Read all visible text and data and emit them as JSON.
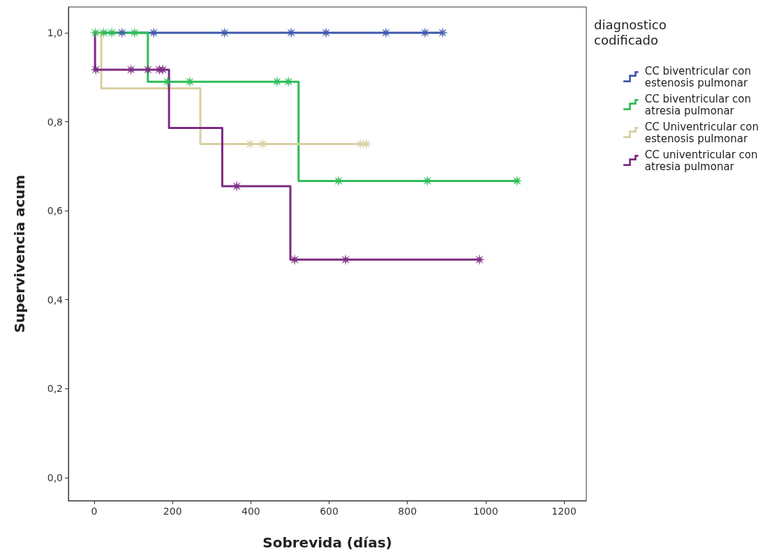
{
  "chart_data": {
    "type": "step",
    "xlabel": "Sobrevida (días)",
    "ylabel": "Supervivencia acum",
    "legend_title": "diagnostico codificado",
    "legend": "right",
    "grid": false,
    "marker": "none",
    "xlim": [
      -66,
      1257
    ],
    "xticks": [
      0,
      200,
      400,
      600,
      800,
      1000,
      1200
    ],
    "ylim": [
      -0.052,
      1.058
    ],
    "yticks": [
      {
        "value": 0,
        "label": "0,0"
      },
      {
        "value": 0.2,
        "label": "0,2"
      },
      {
        "value": 0.4,
        "label": "0,4"
      },
      {
        "value": 0.6,
        "label": "0,6"
      },
      {
        "value": 0.8,
        "label": "0,8"
      },
      {
        "value": 1,
        "label": "1,0"
      }
    ],
    "series": [
      {
        "name": "CC biventricular con estenosis pulmonar",
        "color": "#3e58ac",
        "x": [
          0,
          890
        ],
        "values": [
          1,
          1
        ]
      },
      {
        "name": "CC biventricular con atresia pulmonar",
        "color": "#2dbd57",
        "x": [
          0,
          137,
          522,
          1085
        ],
        "values": [
          1,
          0.89,
          0.667,
          0.667
        ]
      },
      {
        "name": "CC Univentricular con estenosis pulmonar",
        "color": "#d8cfa0",
        "x": [
          0,
          18,
          271,
          700
        ],
        "values": [
          1,
          0.875,
          0.75,
          0.75
        ]
      },
      {
        "name": "CC univentricular con atresia pulmonar",
        "color": "#7b2a82",
        "x": [
          0,
          2,
          191,
          327,
          501,
          988
        ],
        "values": [
          1,
          0.917,
          0.786,
          0.655,
          0.49,
          0.49
        ]
      },
      {
        "type": "scatter",
        "marker": "star",
        "color": "#3e58ac",
        "x": [
          71,
          152,
          333,
          503,
          592,
          745,
          845,
          890
        ],
        "values": [
          1,
          1,
          1,
          1,
          1,
          1,
          1,
          1
        ]
      },
      {
        "type": "scatter",
        "marker": "star",
        "color": "#2dbd57",
        "x": [
          3,
          24,
          45,
          103,
          187,
          244,
          467,
          496,
          624,
          851,
          1080
        ],
        "values": [
          1,
          1,
          1,
          1,
          0.89,
          0.89,
          0.89,
          0.89,
          0.667,
          0.667,
          0.667
        ]
      },
      {
        "type": "scatter",
        "marker": "star",
        "color": "#d8cfa0",
        "x": [
          398,
          430,
          680,
          695
        ],
        "values": [
          0.75,
          0.75,
          0.75,
          0.75
        ]
      },
      {
        "type": "scatter",
        "marker": "star",
        "color": "#7b2a82",
        "x": [
          4,
          94,
          137,
          166,
          175,
          364,
          512,
          642,
          984
        ],
        "values": [
          0.917,
          0.917,
          0.917,
          0.917,
          0.917,
          0.655,
          0.49,
          0.49,
          0.49
        ]
      }
    ]
  }
}
